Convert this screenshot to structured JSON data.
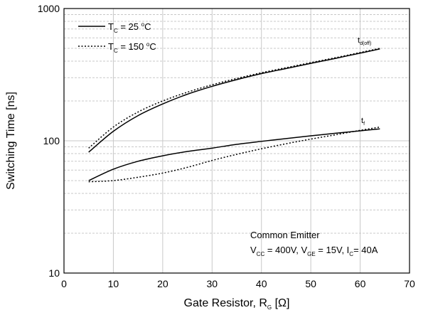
{
  "chart_data": {
    "type": "line",
    "xlabel": "Gate Resistor, RG [Ω]",
    "ylabel": "Switching Time [ns]",
    "xlim": [
      0,
      70
    ],
    "ylim": [
      10,
      1000
    ],
    "y_scale": "log",
    "grid": true,
    "x_ticks": [
      "0",
      "10",
      "20",
      "30",
      "40",
      "50",
      "60",
      "70"
    ],
    "y_ticks": [
      "10",
      "100",
      "1000"
    ],
    "legend_placement": "top-left",
    "legend": [
      {
        "label": "TC = 25 °C",
        "style": "solid"
      },
      {
        "label": "TC = 150 °C",
        "style": "dotted"
      }
    ],
    "annotations": [
      "Common Emitter",
      "VCC = 400V, VGE = 15V, IC= 40A"
    ],
    "curve_labels": [
      "td(off)",
      "tf"
    ],
    "series": [
      {
        "name": "td(off) TC = 25 °C",
        "style": "solid",
        "x": [
          5,
          10,
          15,
          20,
          25,
          30,
          35,
          40,
          45,
          50,
          55,
          60,
          64
        ],
        "y": [
          82,
          118,
          155,
          190,
          225,
          258,
          290,
          322,
          352,
          385,
          420,
          460,
          495
        ]
      },
      {
        "name": "td(off) TC = 150 °C",
        "style": "dotted",
        "x": [
          5,
          10,
          15,
          20,
          25,
          30,
          35,
          40,
          45,
          50,
          55,
          60,
          64
        ],
        "y": [
          88,
          127,
          165,
          200,
          233,
          265,
          296,
          327,
          357,
          390,
          425,
          465,
          500
        ]
      },
      {
        "name": "tf TC = 25 °C",
        "style": "solid",
        "x": [
          5,
          10,
          15,
          20,
          25,
          30,
          35,
          40,
          45,
          50,
          55,
          60,
          64
        ],
        "y": [
          50,
          61,
          70,
          77,
          83,
          88,
          94,
          99,
          104,
          109,
          114,
          119,
          123
        ]
      },
      {
        "name": "tf TC = 150 °C",
        "style": "dotted",
        "x": [
          5,
          10,
          15,
          20,
          25,
          30,
          35,
          40,
          45,
          50,
          55,
          60,
          64
        ],
        "y": [
          49,
          50,
          53,
          57,
          63,
          71,
          79,
          87,
          95,
          103,
          111,
          120,
          127
        ]
      }
    ]
  }
}
